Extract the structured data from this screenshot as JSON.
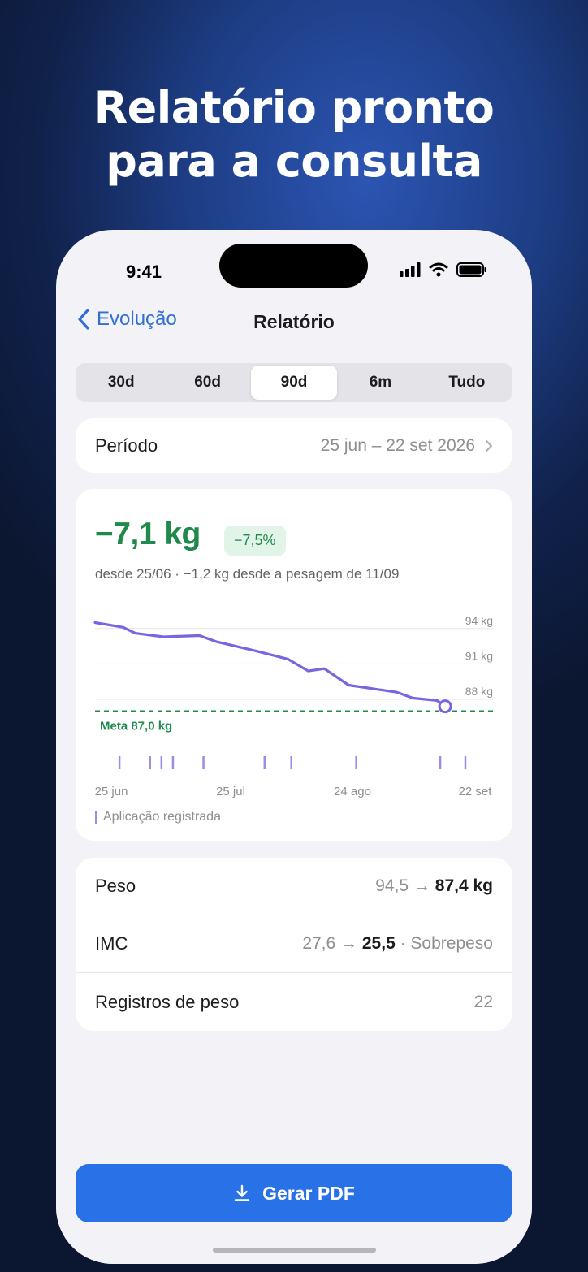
{
  "headline": {
    "line1": "Relatório pronto",
    "line2": "para a consulta"
  },
  "status_bar": {
    "time": "9:41"
  },
  "nav": {
    "back_label": "Evolução",
    "title": "Relatório"
  },
  "ranges": [
    {
      "label": "30d",
      "active": false
    },
    {
      "label": "60d",
      "active": false
    },
    {
      "label": "90d",
      "active": true
    },
    {
      "label": "6m",
      "active": false
    },
    {
      "label": "Tudo",
      "active": false
    }
  ],
  "period": {
    "label": "Período",
    "value": "25 jun – 22 set 2026"
  },
  "summary": {
    "delta": "−7,1 kg",
    "percent": "−7,5%",
    "subtitle": "desde 25/06 · −1,2 kg desde a pesagem de 11/09"
  },
  "colors": {
    "accent": "#2871e6",
    "line": "#7b64e0",
    "goal": "#1f8a4c",
    "injection": "#9b8de6"
  },
  "chart_data": {
    "type": "line",
    "y_ticks": [
      "94 kg",
      "91 kg",
      "88 kg"
    ],
    "x_ticks": [
      "25 jun",
      "25 jul",
      "24 ago",
      "22 set"
    ],
    "goal_label": "Meta 87,0 kg",
    "legend_label": "Aplicação registrada",
    "ylim": [
      86.0,
      95.5
    ],
    "x_range_days": [
      0,
      89
    ],
    "series": [
      {
        "x": [
          0,
          7,
          10,
          17,
          26,
          30,
          40,
          48,
          53,
          57,
          63,
          71,
          75,
          79,
          85,
          87
        ],
        "y": [
          94.5,
          94.1,
          93.6,
          93.3,
          93.4,
          92.9,
          92.1,
          91.4,
          90.4,
          90.6,
          89.2,
          88.8,
          88.6,
          88.1,
          87.9,
          87.4
        ]
      }
    ],
    "goal": 87.0,
    "injections_days": [
      3,
      11,
      14,
      17,
      25,
      41,
      48,
      65,
      87,
      94
    ]
  },
  "stats": [
    {
      "label": "Peso",
      "from": "94,5 → ",
      "to": "87,4 kg",
      "suffix": ""
    },
    {
      "label": "IMC",
      "from": "27,6 → ",
      "to": "25,5",
      "suffix": " · Sobrepeso"
    },
    {
      "label": "Registros de peso",
      "from": "22",
      "to": "",
      "suffix": ""
    }
  ],
  "actions": {
    "pdf_label": "Gerar PDF"
  }
}
